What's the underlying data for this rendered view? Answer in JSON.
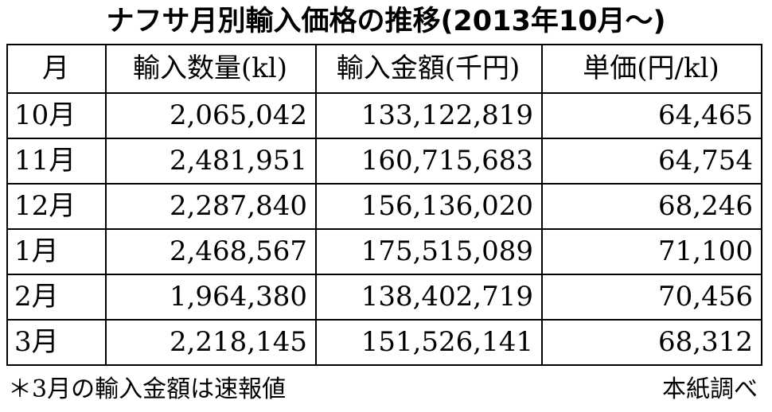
{
  "title": "ナフサ月別輸入価格の推移(2013年10月～)",
  "table": {
    "headers": [
      "月",
      "輸入数量(kl)",
      "輸入金額(千円)",
      "単価(円/kl)"
    ],
    "rows": [
      [
        "10月",
        "2,065,042",
        "133,122,819",
        "64,465"
      ],
      [
        "11月",
        "2,481,951",
        "160,715,683",
        "64,754"
      ],
      [
        "12月",
        "2,287,840",
        "156,136,020",
        "68,246"
      ],
      [
        "1月",
        "2,468,567",
        "175,515,089",
        "71,100"
      ],
      [
        "2月",
        "1,964,380",
        "138,402,719",
        "70,456"
      ],
      [
        "3月",
        "2,218,145",
        "151,526,141",
        "68,312"
      ]
    ]
  },
  "footer": {
    "note": "＊3月の輸入金額は速報値",
    "source": "本紙調べ"
  }
}
